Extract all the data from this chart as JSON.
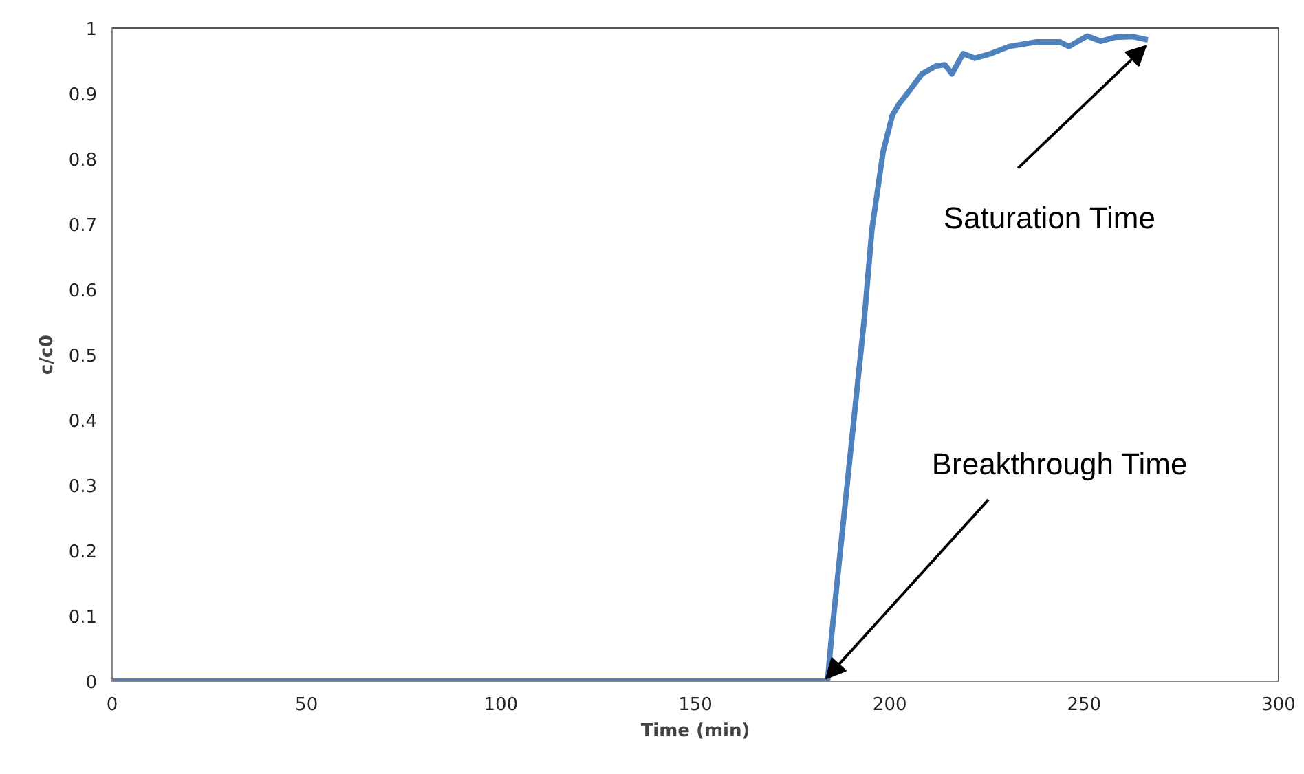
{
  "chart_data": {
    "type": "line",
    "xlabel": "Time (min)",
    "ylabel": "c/c0",
    "x": [
      0,
      184,
      185,
      193.5,
      195.4,
      198.3,
      200.7,
      202.4,
      204.8,
      208.3,
      211.9,
      214.2,
      216,
      218.9,
      221.9,
      226,
      230.7,
      237.8,
      243.7,
      246.1,
      250.8,
      254.3,
      257.9,
      262.6,
      266.4
    ],
    "series": [
      {
        "color": "#4f81bd",
        "values": [
          0,
          0,
          0.067,
          0.558,
          0.691,
          0.811,
          0.867,
          0.884,
          0.902,
          0.93,
          0.942,
          0.944,
          0.93,
          0.961,
          0.954,
          0.961,
          0.972,
          0.979,
          0.979,
          0.972,
          0.988,
          0.98,
          0.986,
          0.987,
          0.982
        ]
      }
    ],
    "xlim": [
      0,
      300
    ],
    "xticks": [
      0,
      50,
      100,
      150,
      200,
      250,
      300
    ],
    "ylim": [
      0,
      1
    ],
    "yticks": [
      0,
      0.1,
      0.2,
      0.3,
      0.4,
      0.5,
      0.6,
      0.7,
      0.8,
      0.9,
      1
    ],
    "grid": false,
    "marker": "none",
    "line_style": "solid",
    "annotations": [
      {
        "text": "Saturation Time",
        "x": 265.9,
        "y": 0.973
      },
      {
        "text": "Breakthrough Time",
        "x": 183.6,
        "y": 0.004
      }
    ]
  }
}
